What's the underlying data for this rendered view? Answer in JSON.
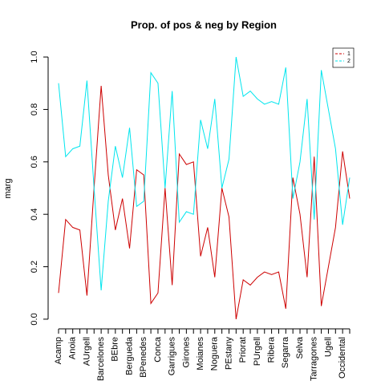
{
  "chart_data": {
    "type": "line",
    "title": "Prop. of pos & neg by Region",
    "ylabel": "marg",
    "categories": [
      "Acamp",
      null,
      "Anoia",
      null,
      "AUrgell",
      null,
      "Barcelones",
      null,
      "BEbre",
      null,
      "Bergueda",
      null,
      "BPenedes",
      null,
      "Conca",
      null,
      "Garrigues",
      null,
      "Girones",
      null,
      "Moianes",
      null,
      "Noguera",
      null,
      "PEstany",
      null,
      "Priorat",
      null,
      "PUrgell",
      null,
      "Ribera",
      null,
      "Segarra",
      null,
      "Selva",
      null,
      "Tarragones",
      null,
      "Ugell",
      null,
      "Occidental",
      null
    ],
    "series": [
      {
        "name": "1",
        "color": "#cd0000",
        "values": [
          0.1,
          0.38,
          0.35,
          0.34,
          0.09,
          0.5,
          0.89,
          0.55,
          0.34,
          0.46,
          0.27,
          0.57,
          0.55,
          0.06,
          0.1,
          0.5,
          0.13,
          0.63,
          0.59,
          0.6,
          0.24,
          0.35,
          0.16,
          0.5,
          0.39,
          0.0,
          0.15,
          0.13,
          0.16,
          0.18,
          0.17,
          0.18,
          0.04,
          0.54,
          0.4,
          0.16,
          0.62,
          0.05,
          0.2,
          0.35,
          0.64,
          0.46
        ]
      },
      {
        "name": "2",
        "color": "#00e5ee",
        "values": [
          0.9,
          0.62,
          0.65,
          0.66,
          0.91,
          0.5,
          0.11,
          0.45,
          0.66,
          0.54,
          0.73,
          0.43,
          0.45,
          0.94,
          0.9,
          0.5,
          0.87,
          0.37,
          0.41,
          0.4,
          0.76,
          0.65,
          0.84,
          0.5,
          0.61,
          1.0,
          0.85,
          0.87,
          0.84,
          0.82,
          0.83,
          0.82,
          0.96,
          0.46,
          0.6,
          0.84,
          0.38,
          0.95,
          0.8,
          0.65,
          0.36,
          0.54
        ]
      }
    ],
    "ylim": [
      -0.04,
      1.04
    ],
    "yticks": [
      {
        "value": 0,
        "label": "0.0"
      },
      {
        "value": 0.2,
        "label": "0.2"
      },
      {
        "value": 0.4,
        "label": "0.4"
      },
      {
        "value": 0.6,
        "label": "0.6"
      },
      {
        "value": 0.8,
        "label": "0.8"
      },
      {
        "value": 1,
        "label": "1.0"
      }
    ],
    "legend": "top-right",
    "grid": false
  }
}
